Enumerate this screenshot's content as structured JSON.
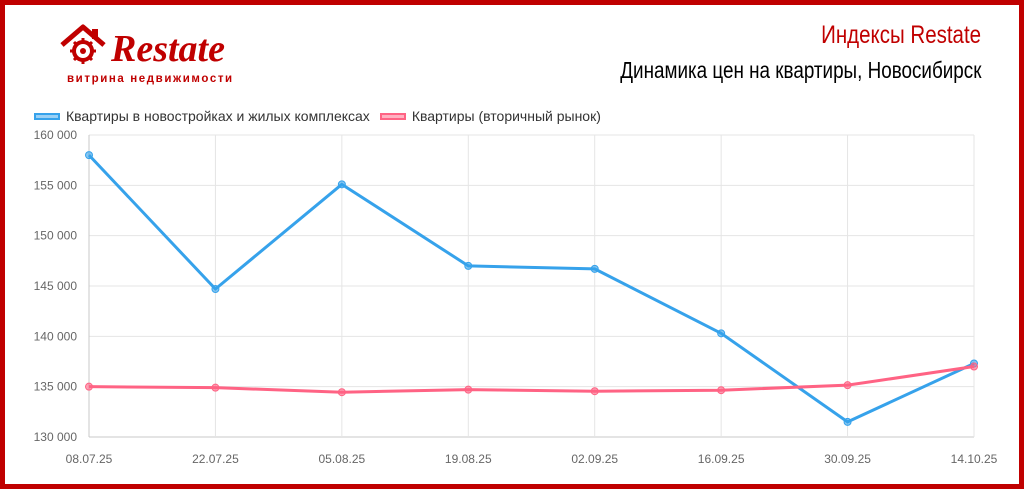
{
  "brand": {
    "logo_text": "Restate",
    "tagline": "витрина недвижимости",
    "accent_color": "#c00000"
  },
  "header": {
    "title": "Индексы Restate",
    "subtitle": "Динамика цен на квартиры, Новосибирск"
  },
  "chart_data": {
    "type": "line",
    "categories": [
      "08.07.25",
      "22.07.25",
      "05.08.25",
      "19.08.25",
      "02.09.25",
      "16.09.25",
      "30.09.25",
      "14.10.25"
    ],
    "series": [
      {
        "name": "Квартиры в новостройках и жилых комплексах",
        "color": "#36a2eb",
        "values": [
          158000,
          144700,
          155100,
          147000,
          146700,
          140300,
          131500,
          137300
        ]
      },
      {
        "name": "Квартиры (вторичный рынок)",
        "color": "#ff6384",
        "values": [
          135000,
          134900,
          134450,
          134700,
          134550,
          134650,
          135150,
          137000
        ]
      }
    ],
    "ylim": [
      130000,
      160000
    ],
    "yticks": [
      130000,
      135000,
      140000,
      145000,
      150000,
      155000,
      160000
    ],
    "ytick_labels": [
      "130 000",
      "135 000",
      "140 000",
      "145 000",
      "150 000",
      "155 000",
      "160 000"
    ],
    "grid": true,
    "legend_position": "top-left"
  }
}
